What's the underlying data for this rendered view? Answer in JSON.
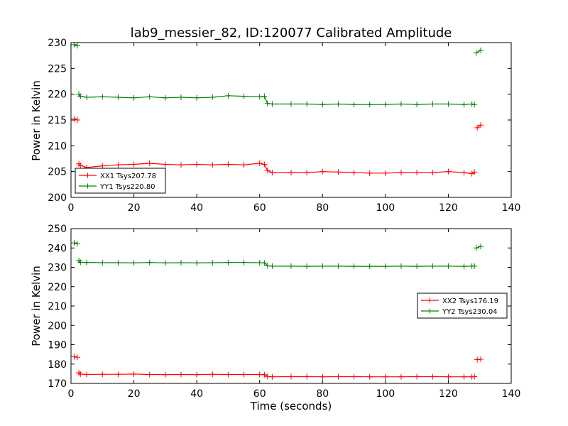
{
  "chart_data": [
    {
      "type": "line",
      "title": "lab9_messier_82, ID:120077 Calibrated Amplitude",
      "xlabel": "",
      "ylabel": "Power in Kelvin",
      "xlim": [
        0,
        140
      ],
      "ylim": [
        200,
        230
      ],
      "xticks": [
        "0",
        "20",
        "40",
        "60",
        "80",
        "100",
        "120",
        "140"
      ],
      "yticks": [
        "200",
        "205",
        "210",
        "215",
        "220",
        "225",
        "230"
      ],
      "legend_position": "lower-left",
      "series": [
        {
          "name": "XX1 Tsys207.78",
          "color": "#ff0000",
          "segments": [
            {
              "x": [
                1,
                2
              ],
              "y": [
                215.2,
                215.0
              ]
            },
            {
              "x": [
                2.5,
                3,
                5,
                10,
                15,
                20,
                25,
                30,
                35,
                40,
                45,
                50,
                55,
                60,
                61.5,
                62.5,
                64,
                70,
                75,
                80,
                85,
                90,
                95,
                100,
                105,
                110,
                115,
                120,
                125,
                127.5,
                128.3
              ],
              "y": [
                206.5,
                206.2,
                205.8,
                206.1,
                206.3,
                206.4,
                206.6,
                206.4,
                206.3,
                206.4,
                206.3,
                206.4,
                206.3,
                206.6,
                206.4,
                205.2,
                204.8,
                204.8,
                204.8,
                205.0,
                204.9,
                204.8,
                204.7,
                204.7,
                204.8,
                204.8,
                204.8,
                205.0,
                204.8,
                204.6,
                204.9
              ]
            },
            {
              "x": [
                129.2,
                130.3
              ],
              "y": [
                213.5,
                214.0
              ]
            }
          ]
        },
        {
          "name": "YY1 Tsys220.80",
          "color": "#008000",
          "segments": [
            {
              "x": [
                1,
                2
              ],
              "y": [
                229.6,
                229.4
              ]
            },
            {
              "x": [
                2.5,
                3,
                5,
                10,
                15,
                20,
                25,
                30,
                35,
                40,
                45,
                50,
                55,
                60,
                61.5,
                62.5,
                64,
                70,
                75,
                80,
                85,
                90,
                95,
                100,
                105,
                110,
                115,
                120,
                125,
                127.5,
                128.3
              ],
              "y": [
                220.0,
                219.6,
                219.4,
                219.5,
                219.4,
                219.3,
                219.5,
                219.3,
                219.4,
                219.3,
                219.4,
                219.7,
                219.6,
                219.5,
                219.6,
                218.2,
                218.1,
                218.1,
                218.1,
                218.0,
                218.1,
                218.0,
                218.0,
                218.0,
                218.1,
                218.0,
                218.1,
                218.1,
                218.0,
                218.1,
                218.0
              ]
            },
            {
              "x": [
                128.9,
                130.3
              ],
              "y": [
                228.0,
                228.5
              ]
            }
          ]
        }
      ]
    },
    {
      "type": "line",
      "title": "",
      "xlabel": "Time (seconds)",
      "ylabel": "Power in Kelvin",
      "xlim": [
        0,
        140
      ],
      "ylim": [
        170,
        250
      ],
      "xticks": [
        "0",
        "20",
        "40",
        "60",
        "80",
        "100",
        "120",
        "140"
      ],
      "yticks": [
        "170",
        "180",
        "190",
        "200",
        "210",
        "220",
        "230",
        "240",
        "250"
      ],
      "legend_position": "center-right",
      "series": [
        {
          "name": "XX2 Tsys176.19",
          "color": "#ff0000",
          "segments": [
            {
              "x": [
                1,
                2
              ],
              "y": [
                183.8,
                183.5
              ]
            },
            {
              "x": [
                2.5,
                3,
                5,
                10,
                15,
                20,
                25,
                30,
                35,
                40,
                45,
                50,
                55,
                60,
                61.5,
                62.5,
                64,
                70,
                75,
                80,
                85,
                90,
                95,
                100,
                105,
                110,
                115,
                120,
                125,
                127.5,
                128.3
              ],
              "y": [
                175.5,
                174.8,
                174.6,
                174.7,
                174.7,
                174.8,
                174.6,
                174.5,
                174.6,
                174.5,
                174.7,
                174.6,
                174.6,
                174.6,
                174.5,
                173.6,
                173.4,
                173.5,
                173.5,
                173.4,
                173.5,
                173.5,
                173.4,
                173.4,
                173.4,
                173.5,
                173.5,
                173.4,
                173.4,
                173.4,
                173.5
              ]
            },
            {
              "x": [
                129.2,
                130.3
              ],
              "y": [
                182.3,
                182.5
              ]
            }
          ]
        },
        {
          "name": "YY2 Tsys230.04",
          "color": "#008000",
          "segments": [
            {
              "x": [
                1,
                2
              ],
              "y": [
                242.6,
                242.2
              ]
            },
            {
              "x": [
                2.5,
                3,
                5,
                10,
                15,
                20,
                25,
                30,
                35,
                40,
                45,
                50,
                55,
                60,
                61.5,
                62.5,
                64,
                70,
                75,
                80,
                85,
                90,
                95,
                100,
                105,
                110,
                115,
                120,
                125,
                127.5,
                128.3
              ],
              "y": [
                233.5,
                232.6,
                232.5,
                232.4,
                232.4,
                232.3,
                232.5,
                232.3,
                232.4,
                232.3,
                232.4,
                232.5,
                232.5,
                232.4,
                232.3,
                230.8,
                230.6,
                230.6,
                230.5,
                230.6,
                230.6,
                230.5,
                230.5,
                230.5,
                230.6,
                230.5,
                230.6,
                230.6,
                230.5,
                230.6,
                230.6
              ]
            },
            {
              "x": [
                128.9,
                130.3
              ],
              "y": [
                240.0,
                240.8
              ]
            }
          ]
        }
      ]
    }
  ]
}
